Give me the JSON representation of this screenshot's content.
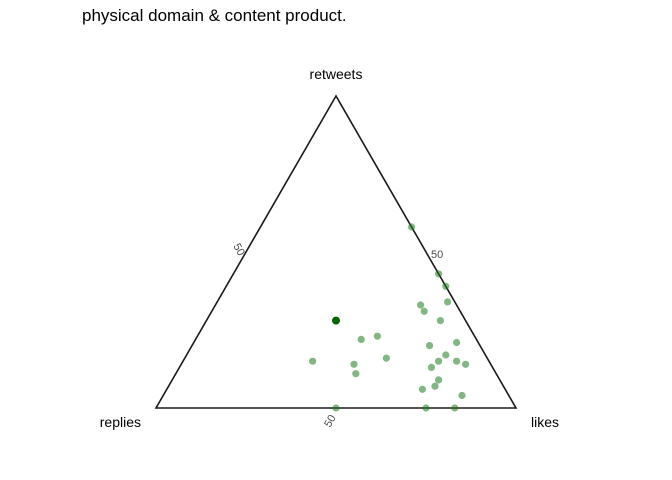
{
  "chart_data": {
    "type": "scatter",
    "subtype": "ternary",
    "title": "physical domain & content product.",
    "axes": {
      "top": "retweets",
      "left": "replies",
      "right": "likes"
    },
    "ticks": [
      "50",
      "50",
      "50"
    ],
    "point_color": "#1b7a1b",
    "highlight_color": "#006400",
    "points": [
      {
        "retweets": 58,
        "likes": 42,
        "replies": 0
      },
      {
        "retweets": 43,
        "likes": 57,
        "replies": 0
      },
      {
        "retweets": 39,
        "likes": 61,
        "replies": 0
      },
      {
        "retweets": 34,
        "likes": 64,
        "replies": 2
      },
      {
        "retweets": 31,
        "likes": 59,
        "replies": 10
      },
      {
        "retweets": 33,
        "likes": 57,
        "replies": 10
      },
      {
        "retweets": 28,
        "likes": 65,
        "replies": 7
      },
      {
        "retweets": 21,
        "likes": 73,
        "replies": 6
      },
      {
        "retweets": 14,
        "likes": 79,
        "replies": 7
      },
      {
        "retweets": 15,
        "likes": 76,
        "replies": 9
      },
      {
        "retweets": 17,
        "likes": 72,
        "replies": 11
      },
      {
        "retweets": 20,
        "likes": 66,
        "replies": 14
      },
      {
        "retweets": 15,
        "likes": 71,
        "replies": 14
      },
      {
        "retweets": 13,
        "likes": 70,
        "replies": 17
      },
      {
        "retweets": 9,
        "likes": 74,
        "replies": 17
      },
      {
        "retweets": 7,
        "likes": 74,
        "replies": 19
      },
      {
        "retweets": 6,
        "likes": 71,
        "replies": 23
      },
      {
        "retweets": 4,
        "likes": 83,
        "replies": 13
      },
      {
        "retweets": 0,
        "likes": 75,
        "replies": 25
      },
      {
        "retweets": 0,
        "likes": 83,
        "replies": 17
      },
      {
        "retweets": 23,
        "likes": 50,
        "replies": 27
      },
      {
        "retweets": 22,
        "likes": 46,
        "replies": 32
      },
      {
        "retweets": 16,
        "likes": 56,
        "replies": 28
      },
      {
        "retweets": 14,
        "likes": 48,
        "replies": 38
      },
      {
        "retweets": 15,
        "likes": 36,
        "replies": 49
      },
      {
        "retweets": 11,
        "likes": 50,
        "replies": 39
      },
      {
        "retweets": 0,
        "likes": 50,
        "replies": 50
      },
      {
        "retweets": 28,
        "likes": 36,
        "replies": 36,
        "highlight": true
      }
    ]
  }
}
